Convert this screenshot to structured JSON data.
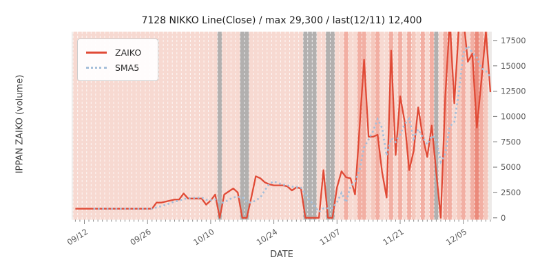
{
  "title": "7128 NIKKO Line(Close) / max 29,300 / last(12/11) 12,400",
  "axes": {
    "x_label": "DATE",
    "y_label": "IPPAN ZAIKO (volume)",
    "y_ticks": [
      0,
      2500,
      5000,
      7500,
      10000,
      12500,
      15000,
      17500
    ],
    "x_ticks": [
      {
        "label": "09/12",
        "day_index": 2
      },
      {
        "label": "09/26",
        "day_index": 16
      },
      {
        "label": "10/10",
        "day_index": 30
      },
      {
        "label": "10/24",
        "day_index": 44
      },
      {
        "label": "11/07",
        "day_index": 58
      },
      {
        "label": "11/21",
        "day_index": 72
      },
      {
        "label": "12/05",
        "day_index": 86
      }
    ]
  },
  "legend": {
    "items": [
      {
        "label": "ZAIKO",
        "style": "solid",
        "color": "#e04a36"
      },
      {
        "label": "SMA5",
        "style": "dotted",
        "color": "#a5bfda"
      }
    ]
  },
  "colors": {
    "zaiko_line": "#e04a36",
    "sma5_line": "#a5bfda",
    "plot_bg": "#edeae8",
    "gridline": "#ffffff",
    "tick": "#888888",
    "tick_label": "#595959",
    "heat": {
      "b": "#f7d9d1",
      "l": "#f5c8bd",
      "m": "#f2afa3",
      "d": "#eb8a7b",
      "g": "#b2b0af",
      "n": "none"
    }
  },
  "chart_data": {
    "type": "line",
    "title": "7128 NIKKO Line(Close) / max 29,300 / last(12/11) 12,400",
    "xlabel": "DATE",
    "ylabel": "IPPAN ZAIKO (volume)",
    "close_max": "29,300",
    "close_last_date": "12/11",
    "close_last": "12,400",
    "x_unit": "calendar day index (daily points, 0 = two days before 09/12 tick, 92 = 12/11)",
    "ylim": [
      0,
      18400
    ],
    "values_above_ylim_are_clipped": true,
    "series": [
      {
        "name": "ZAIKO",
        "style": "solid",
        "color": "#e04a36",
        "values": [
          900,
          900,
          900,
          900,
          900,
          900,
          900,
          900,
          900,
          900,
          900,
          900,
          900,
          900,
          900,
          900,
          900,
          900,
          1500,
          1500,
          1600,
          1700,
          1800,
          1800,
          2400,
          1900,
          1900,
          1900,
          1900,
          1300,
          1700,
          2300,
          0,
          2300,
          2600,
          2900,
          2500,
          0,
          0,
          2000,
          4100,
          3900,
          3500,
          3300,
          3200,
          3200,
          3200,
          3100,
          2700,
          3000,
          2900,
          0,
          0,
          0,
          0,
          4700,
          0,
          0,
          3000,
          4600,
          4000,
          3900,
          2300,
          8900,
          15600,
          8000,
          8000,
          8200,
          4500,
          2000,
          16500,
          6200,
          12000,
          9500,
          4700,
          6600,
          10900,
          8000,
          6000,
          9100,
          4500,
          0,
          12000,
          19500,
          11300,
          18800,
          19800,
          15400,
          16200,
          8900,
          13500,
          18400,
          12400
        ]
      },
      {
        "name": "SMA5",
        "style": "dotted",
        "color": "#a5bfda",
        "values": [
          null,
          null,
          null,
          null,
          900,
          900,
          900,
          900,
          900,
          900,
          900,
          900,
          900,
          900,
          900,
          900,
          900,
          900,
          1020,
          1140,
          1280,
          1440,
          1620,
          1680,
          1860,
          1920,
          1960,
          1980,
          2000,
          1780,
          1740,
          1820,
          1440,
          1520,
          1780,
          2020,
          2060,
          2060,
          1600,
          1480,
          1720,
          2000,
          2700,
          3360,
          3600,
          3420,
          3280,
          3200,
          3080,
          3040,
          2980,
          2340,
          1720,
          1180,
          580,
          940,
          940,
          940,
          1540,
          2460,
          1520,
          3100,
          3560,
          4740,
          6940,
          7740,
          8560,
          9740,
          8860,
          6140,
          7840,
          7480,
          8240,
          9240,
          9780,
          7800,
          8740,
          7940,
          7240,
          8120,
          7700,
          5520,
          6320,
          9020,
          9460,
          12320,
          16280,
          16960,
          16300,
          15820,
          14760,
          14480,
          13880
        ]
      }
    ],
    "background": {
      "legend_of_codes": "b=base pink, l=light salmon, m=medium salmon, d=deep red, g=gray (no-data day), n=blank",
      "day_heat": [
        "b",
        "b",
        "b",
        "b",
        "b",
        "b",
        "b",
        "b",
        "b",
        "b",
        "b",
        "b",
        "b",
        "b",
        "b",
        "b",
        "b",
        "b",
        "b",
        "b",
        "b",
        "b",
        "b",
        "b",
        "b",
        "b",
        "b",
        "b",
        "b",
        "b",
        "b",
        "b",
        "g",
        "b",
        "b",
        "b",
        "b",
        "g",
        "g",
        "b",
        "b",
        "b",
        "b",
        "b",
        "b",
        "b",
        "b",
        "b",
        "b",
        "b",
        "b",
        "g",
        "g",
        "g",
        "b",
        "b",
        "g",
        "g",
        "b",
        "b",
        "m",
        "b",
        "b",
        "m",
        "m",
        "b",
        "l",
        "m",
        "b",
        "b",
        "m",
        "b",
        "m",
        "b",
        "m",
        "l",
        "b",
        "m",
        "b",
        "m",
        "g",
        "b",
        "m",
        "m",
        "b",
        "l",
        "m",
        "b",
        "m",
        "d",
        "m",
        "l",
        "n"
      ]
    }
  }
}
